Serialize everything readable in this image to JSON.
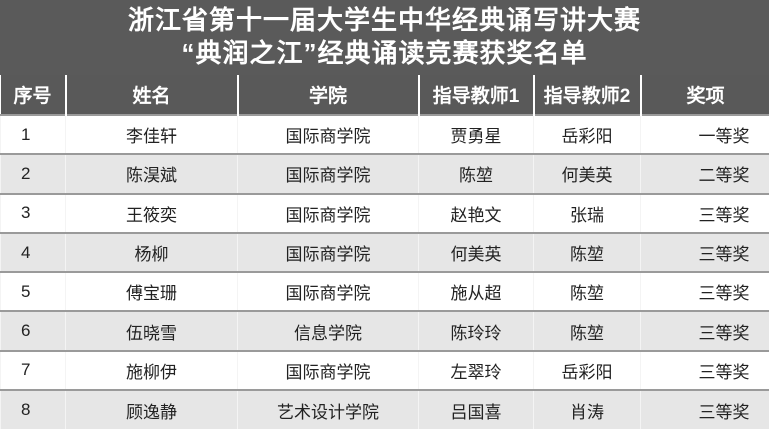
{
  "title": {
    "line1": "浙江省第十一届大学生中华经典诵写讲大赛",
    "line2": "“典润之江”经典诵读竞赛获奖名单"
  },
  "columns": [
    "序号",
    "姓名",
    "学院",
    "指导教师1",
    "指导教师2",
    "奖项"
  ],
  "rows": [
    [
      "1",
      "李佳轩",
      "国际商学院",
      "贾勇星",
      "岳彩阳",
      "一等奖"
    ],
    [
      "2",
      "陈淏斌",
      "国际商学院",
      "陈堃",
      "何美英",
      "二等奖"
    ],
    [
      "3",
      "王筱奕",
      "国际商学院",
      "赵艳文",
      "张瑞",
      "三等奖"
    ],
    [
      "4",
      "杨柳",
      "国际商学院",
      "何美英",
      "陈堃",
      "三等奖"
    ],
    [
      "5",
      "傅宝珊",
      "国际商学院",
      "施从超",
      "陈堃",
      "三等奖"
    ],
    [
      "6",
      "伍晓雪",
      "信息学院",
      "陈玲玲",
      "陈堃",
      "三等奖"
    ],
    [
      "7",
      "施柳伊",
      "国际商学院",
      "左翠玲",
      "岳彩阳",
      "三等奖"
    ],
    [
      "8",
      "顾逸静",
      "艺术设计学院",
      "吕国喜",
      "肖涛",
      "三等奖"
    ]
  ]
}
